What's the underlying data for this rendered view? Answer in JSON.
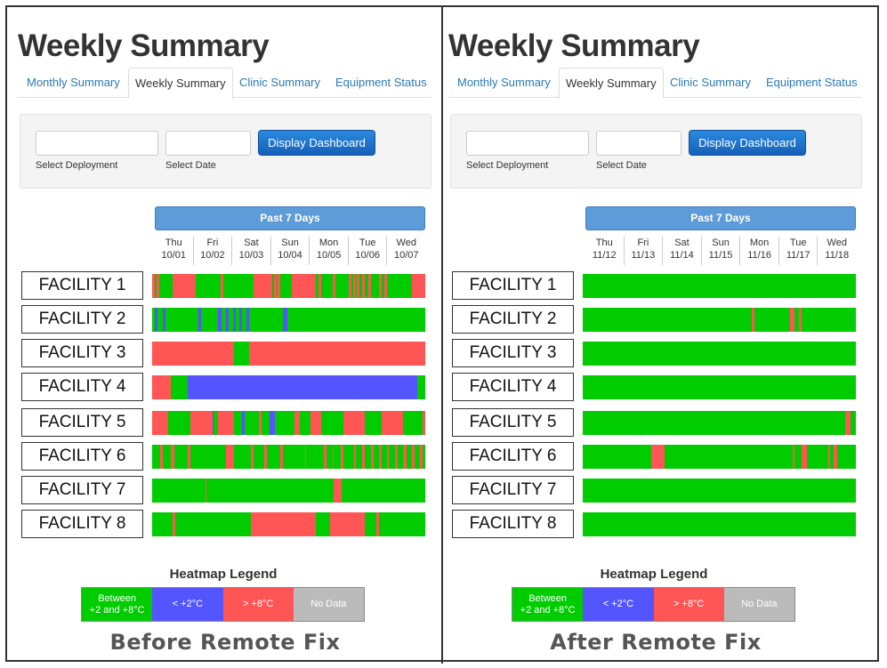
{
  "colors": {
    "green": "#00cc00",
    "red": "#ff5555",
    "blue": "#5555ff",
    "gray": "#bbbbbb",
    "link": "#2a7ab8",
    "button": "#1a6fd0",
    "header_bar": "#5d9cd8"
  },
  "panels": [
    {
      "title": "Weekly Summary",
      "tabs": [
        "Monthly Summary",
        "Weekly Summary",
        "Clinic Summary",
        "Equipment Status"
      ],
      "active_tab": "Weekly Summary",
      "form": {
        "deployment_label": "Select Deployment",
        "date_label": "Select Date",
        "button_label": "Display Dashboard"
      },
      "period_label": "Past 7 Days",
      "days": [
        {
          "name": "Thu",
          "date": "10/01"
        },
        {
          "name": "Fri",
          "date": "10/02"
        },
        {
          "name": "Sat",
          "date": "10/03"
        },
        {
          "name": "Sun",
          "date": "10/04"
        },
        {
          "name": "Mon",
          "date": "10/05"
        },
        {
          "name": "Tue",
          "date": "10/06"
        },
        {
          "name": "Wed",
          "date": "10/07"
        }
      ],
      "facilities": [
        {
          "name": "FACILITY 1",
          "segments": [
            [
              0,
              0.01,
              "red"
            ],
            [
              0.015,
              0.025,
              "red"
            ],
            [
              0.075,
              0.16,
              "red"
            ],
            [
              0.25,
              0.26,
              "red"
            ],
            [
              0.37,
              0.44,
              "red"
            ],
            [
              0.445,
              0.455,
              "red"
            ],
            [
              0.46,
              0.47,
              "red"
            ],
            [
              0.51,
              0.6,
              "red"
            ],
            [
              0.61,
              0.62,
              "red"
            ],
            [
              0.66,
              0.67,
              "red"
            ],
            [
              0.72,
              0.73,
              "red"
            ],
            [
              0.735,
              0.745,
              "red"
            ],
            [
              0.75,
              0.76,
              "red"
            ],
            [
              0.77,
              0.78,
              "red"
            ],
            [
              0.79,
              0.8,
              "red"
            ],
            [
              0.83,
              0.84,
              "red"
            ],
            [
              0.85,
              0.86,
              "red"
            ],
            [
              0.95,
              1.0,
              "red"
            ]
          ]
        },
        {
          "name": "FACILITY 2",
          "segments": [
            [
              0.01,
              0.02,
              "blue"
            ],
            [
              0.04,
              0.05,
              "blue"
            ],
            [
              0.17,
              0.18,
              "blue"
            ],
            [
              0.24,
              0.255,
              "blue"
            ],
            [
              0.27,
              0.28,
              "blue"
            ],
            [
              0.295,
              0.305,
              "blue"
            ],
            [
              0.32,
              0.33,
              "blue"
            ],
            [
              0.345,
              0.355,
              "blue"
            ],
            [
              0.48,
              0.495,
              "blue"
            ]
          ]
        },
        {
          "name": "FACILITY 3",
          "segments": [
            [
              0,
              0.3,
              "red"
            ],
            [
              0.355,
              1.0,
              "red"
            ]
          ]
        },
        {
          "name": "FACILITY 4",
          "segments": [
            [
              0,
              0.07,
              "red"
            ],
            [
              0.13,
              0.97,
              "blue"
            ]
          ]
        },
        {
          "name": "FACILITY 5",
          "segments": [
            [
              0,
              0.06,
              "red"
            ],
            [
              0.14,
              0.22,
              "red"
            ],
            [
              0.22,
              0.225,
              "blue"
            ],
            [
              0.24,
              0.3,
              "red"
            ],
            [
              0.33,
              0.34,
              "blue"
            ],
            [
              0.39,
              0.4,
              "red"
            ],
            [
              0.43,
              0.45,
              "blue"
            ],
            [
              0.52,
              0.54,
              "red"
            ],
            [
              0.58,
              0.62,
              "red"
            ],
            [
              0.7,
              0.78,
              "red"
            ],
            [
              0.84,
              0.92,
              "red"
            ],
            [
              0.99,
              1.0,
              "red"
            ]
          ]
        },
        {
          "name": "FACILITY 6",
          "segments": [
            [
              0.03,
              0.04,
              "red"
            ],
            [
              0.07,
              0.08,
              "red"
            ],
            [
              0.13,
              0.14,
              "red"
            ],
            [
              0.27,
              0.3,
              "red"
            ],
            [
              0.36,
              0.37,
              "red"
            ],
            [
              0.41,
              0.42,
              "red"
            ],
            [
              0.47,
              0.48,
              "red"
            ],
            [
              0.56,
              0.565,
              "red"
            ],
            [
              0.63,
              0.64,
              "red"
            ],
            [
              0.66,
              0.665,
              "red"
            ],
            [
              0.69,
              0.7,
              "red"
            ],
            [
              0.74,
              0.745,
              "red"
            ],
            [
              0.77,
              0.78,
              "red"
            ],
            [
              0.8,
              0.81,
              "red"
            ],
            [
              0.83,
              0.84,
              "red"
            ],
            [
              0.86,
              0.865,
              "red"
            ],
            [
              0.89,
              0.9,
              "red"
            ],
            [
              0.92,
              0.93,
              "red"
            ],
            [
              0.95,
              0.96,
              "red"
            ],
            [
              0.98,
              0.99,
              "red"
            ]
          ]
        },
        {
          "name": "FACILITY 7",
          "segments": [
            [
              0.195,
              0.2,
              "red"
            ],
            [
              0.665,
              0.695,
              "red"
            ]
          ]
        },
        {
          "name": "FACILITY 8",
          "segments": [
            [
              0.075,
              0.085,
              "red"
            ],
            [
              0.36,
              0.6,
              "red"
            ],
            [
              0.65,
              0.78,
              "red"
            ],
            [
              0.82,
              0.83,
              "red"
            ]
          ]
        }
      ],
      "legend": {
        "title": "Heatmap Legend",
        "items": [
          {
            "label": "Between +2 and +8°C",
            "color": "#00cc00"
          },
          {
            "label": "< +2°C",
            "color": "#5555ff"
          },
          {
            "label": "> +8°C",
            "color": "#ff5555"
          },
          {
            "label": "No Data",
            "color": "#bbbbbb"
          }
        ]
      },
      "caption": "Before Remote Fix"
    },
    {
      "title": "Weekly Summary",
      "tabs": [
        "Monthly Summary",
        "Weekly Summary",
        "Clinic Summary",
        "Equipment Status"
      ],
      "active_tab": "Weekly Summary",
      "form": {
        "deployment_label": "Select Deployment",
        "date_label": "Select Date",
        "button_label": "Display Dashboard"
      },
      "period_label": "Past 7 Days",
      "days": [
        {
          "name": "Thu",
          "date": "11/12"
        },
        {
          "name": "Fri",
          "date": "11/13"
        },
        {
          "name": "Sat",
          "date": "11/14"
        },
        {
          "name": "Sun",
          "date": "11/15"
        },
        {
          "name": "Mon",
          "date": "11/16"
        },
        {
          "name": "Tue",
          "date": "11/17"
        },
        {
          "name": "Wed",
          "date": "11/18"
        }
      ],
      "facilities": [
        {
          "name": "FACILITY 1",
          "segments": []
        },
        {
          "name": "FACILITY 2",
          "segments": [
            [
              0.62,
              0.628,
              "red"
            ],
            [
              0.76,
              0.775,
              "red"
            ],
            [
              0.79,
              0.8,
              "red"
            ]
          ]
        },
        {
          "name": "FACILITY 3",
          "segments": []
        },
        {
          "name": "FACILITY 4",
          "segments": []
        },
        {
          "name": "FACILITY 5",
          "segments": [
            [
              0.96,
              0.98,
              "red"
            ]
          ]
        },
        {
          "name": "FACILITY 6",
          "segments": [
            [
              0.25,
              0.3,
              "red"
            ],
            [
              0.77,
              0.775,
              "red"
            ],
            [
              0.8,
              0.82,
              "red"
            ],
            [
              0.9,
              0.905,
              "red"
            ],
            [
              0.92,
              0.93,
              "red"
            ]
          ]
        },
        {
          "name": "FACILITY 7",
          "segments": []
        },
        {
          "name": "FACILITY 8",
          "segments": []
        }
      ],
      "legend": {
        "title": "Heatmap Legend",
        "items": [
          {
            "label": "Between +2 and +8°C",
            "color": "#00cc00"
          },
          {
            "label": "< +2°C",
            "color": "#5555ff"
          },
          {
            "label": "> +8°C",
            "color": "#ff5555"
          },
          {
            "label": "No Data",
            "color": "#bbbbbb"
          }
        ]
      },
      "caption": "After Remote Fix"
    }
  ]
}
